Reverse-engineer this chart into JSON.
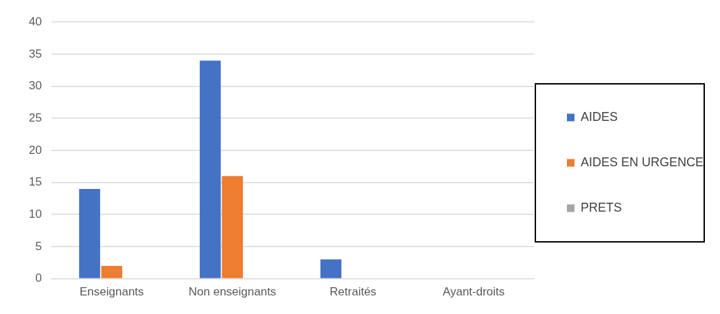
{
  "chart_data": {
    "type": "bar",
    "categories": [
      "Enseignants",
      "Non enseignants",
      "Retraités",
      "Ayant-droits"
    ],
    "series": [
      {
        "name": "AIDES",
        "color": "#4472c4",
        "values": [
          14,
          34,
          3,
          0
        ]
      },
      {
        "name": "AIDES EN URGENCE",
        "color": "#ed7d31",
        "values": [
          2,
          16,
          0,
          0
        ]
      },
      {
        "name": "PRETS",
        "color": "#a5a5a5",
        "values": [
          0,
          0,
          0,
          0
        ]
      }
    ],
    "ylim": [
      0,
      40
    ],
    "yticks": [
      0,
      5,
      10,
      15,
      20,
      25,
      30,
      35,
      40
    ],
    "grid": "y",
    "legend": "right"
  }
}
